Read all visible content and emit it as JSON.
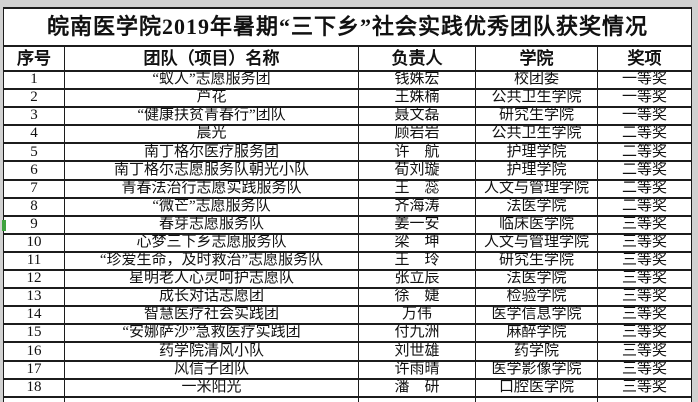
{
  "title": "皖南医学院2019年暑期“三下乡”社会实践优秀团队获奖情况",
  "table": {
    "headers": [
      "序号",
      "团队（项目）名称",
      "负责人",
      "学院",
      "奖项"
    ],
    "rows": [
      [
        "1",
        "“蚁人”志愿服务团",
        "钱姝宏",
        "校团委",
        "一等奖"
      ],
      [
        "2",
        "芦花",
        "王姝楠",
        "公共卫生学院",
        "一等奖"
      ],
      [
        "3",
        "“健康扶贫青春行”团队",
        "聂文磊",
        "研究生学院",
        "一等奖"
      ],
      [
        "4",
        "晨光",
        "顾岩岩",
        "公共卫生学院",
        "二等奖"
      ],
      [
        "5",
        "南丁格尔医疗服务团",
        "许　航",
        "护理学院",
        "二等奖"
      ],
      [
        "6",
        "南丁格尔志愿服务队朝光小队",
        "荀刘璇",
        "护理学院",
        "二等奖"
      ],
      [
        "7",
        "青春法治行志愿实践服务队",
        "王　蕊",
        "人文与管理学院",
        "二等奖"
      ],
      [
        "8",
        "“微芒”志愿服务队",
        "齐海涛",
        "法医学院",
        "二等奖"
      ],
      [
        "9",
        "春芽志愿服务队",
        "姜一安",
        "临床医学院",
        "三等奖"
      ],
      [
        "10",
        "心梦三下乡志愿服务队",
        "梁　坤",
        "人文与管理学院",
        "三等奖"
      ],
      [
        "11",
        "“珍爱生命，及时救治”志愿服务队",
        "王　玲",
        "研究生学院",
        "三等奖"
      ],
      [
        "12",
        "星明老人心灵呵护志愿队",
        "张立辰",
        "法医学院",
        "三等奖"
      ],
      [
        "13",
        "成长对话志愿团",
        "徐　婕",
        "检验学院",
        "三等奖"
      ],
      [
        "14",
        "智慧医疗社会实践团",
        "万伟",
        "医学信息学院",
        "三等奖"
      ],
      [
        "15",
        "“安娜萨沙”急救医疗实践团",
        "付九洲",
        "麻醉学院",
        "三等奖"
      ],
      [
        "16",
        "药学院清风小队",
        "刘世雄",
        "药学院",
        "三等奖"
      ],
      [
        "17",
        "风信子团队",
        "许雨晴",
        "医学影像学院",
        "三等奖"
      ],
      [
        "18",
        "一米阳光",
        "潘　研",
        "口腔医学院",
        "三等奖"
      ]
    ]
  },
  "colors": {
    "page_background": "#d1d1d1",
    "table_background": "#ffffff",
    "border": "#1c1c1c",
    "text": "#111111",
    "row9_selection_mark": "#3fa23f"
  }
}
